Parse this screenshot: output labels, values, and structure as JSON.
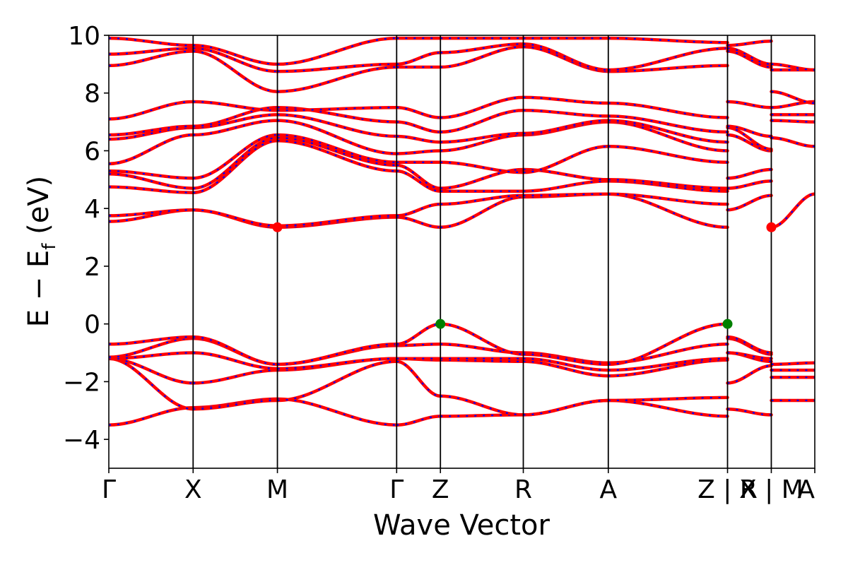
{
  "chart_data": {
    "type": "line",
    "title": "",
    "xlabel": "Wave Vector",
    "ylabel": "E − E",
    "ylabel_sub": "f",
    "ylabel_unit": " (eV)",
    "ylim": [
      -5,
      10
    ],
    "yticks": [
      10,
      8,
      6,
      4,
      2,
      0,
      -2,
      -4
    ],
    "ytick_labels": [
      "10",
      "8",
      "6",
      "4",
      "2",
      "0",
      "−2",
      "−4"
    ],
    "xlim": [
      0,
      1
    ],
    "kpoints": [
      {
        "label": "Γ",
        "x": 0.0
      },
      {
        "label": "X",
        "x": 0.1194
      },
      {
        "label": "M",
        "x": 0.2388
      },
      {
        "label": "Γ",
        "x": 0.4077
      },
      {
        "label": "Z",
        "x": 0.4697
      },
      {
        "label": "R",
        "x": 0.5871
      },
      {
        "label": "A",
        "x": 0.7075
      },
      {
        "label": "Z | R",
        "x": 0.8764
      },
      {
        "label": "X | M",
        "x": 0.9384
      },
      {
        "label": "A",
        "x": 1.0
      }
    ],
    "series_style": {
      "line_color": "#ff0000",
      "dash_color": "#0000ff"
    },
    "grid": false,
    "special_points": [
      {
        "type": "CBM",
        "x": 0.2388,
        "y": 3.35,
        "color": "#ff0000"
      },
      {
        "type": "CBM",
        "x": 0.9384,
        "y": 3.35,
        "color": "#ff0000"
      },
      {
        "type": "VBM",
        "x": 0.4697,
        "y": 0.0,
        "color": "#008000"
      },
      {
        "type": "VBM",
        "x": 0.8764,
        "y": 0.0,
        "color": "#008000"
      }
    ],
    "segments": [
      {
        "from": "Γ",
        "to": "X",
        "x0": 0.0,
        "x1": 0.1194,
        "bands": [
          [
            -3.5,
            -2.9
          ],
          [
            -1.2,
            -2.95
          ],
          [
            -1.2,
            -2.05
          ],
          [
            -1.2,
            -1.0
          ],
          [
            -1.15,
            -0.5
          ],
          [
            -0.7,
            -0.45
          ],
          [
            3.55,
            3.95
          ],
          [
            3.75,
            3.95
          ],
          [
            4.75,
            4.55
          ],
          [
            5.2,
            4.7
          ],
          [
            5.3,
            5.05
          ],
          [
            5.55,
            6.55
          ],
          [
            6.4,
            6.8
          ],
          [
            6.55,
            6.85
          ],
          [
            7.1,
            7.7
          ],
          [
            8.95,
            9.45
          ],
          [
            9.35,
            9.55
          ],
          [
            9.9,
            9.65
          ]
        ]
      },
      {
        "from": "X",
        "to": "M",
        "x0": 0.1194,
        "x1": 0.2388,
        "bands": [
          [
            -2.9,
            -2.6
          ],
          [
            -2.95,
            -2.65
          ],
          [
            -2.05,
            -1.6
          ],
          [
            -1.0,
            -1.55
          ],
          [
            -0.5,
            -1.4
          ],
          [
            -0.45,
            -1.4
          ],
          [
            3.95,
            3.35
          ],
          [
            3.95,
            3.4
          ],
          [
            4.55,
            6.35
          ],
          [
            4.7,
            6.45
          ],
          [
            5.05,
            6.55
          ],
          [
            6.55,
            7.05
          ],
          [
            6.8,
            7.25
          ],
          [
            6.85,
            7.5
          ],
          [
            7.7,
            7.4
          ],
          [
            9.45,
            8.05
          ],
          [
            9.55,
            8.75
          ],
          [
            9.65,
            9.0
          ]
        ]
      },
      {
        "from": "M",
        "to": "Γ",
        "x0": 0.2388,
        "x1": 0.4077,
        "bands": [
          [
            -2.6,
            -3.5
          ],
          [
            -2.65,
            -1.3
          ],
          [
            -1.6,
            -1.2
          ],
          [
            -1.55,
            -1.2
          ],
          [
            -1.4,
            -0.75
          ],
          [
            -1.4,
            -0.7
          ],
          [
            3.35,
            3.7
          ],
          [
            3.4,
            3.75
          ],
          [
            6.35,
            5.3
          ],
          [
            6.45,
            5.5
          ],
          [
            6.55,
            5.6
          ],
          [
            7.05,
            5.9
          ],
          [
            7.25,
            6.5
          ],
          [
            7.5,
            7.0
          ],
          [
            7.4,
            7.5
          ],
          [
            8.05,
            8.9
          ],
          [
            8.75,
            9.0
          ],
          [
            9.0,
            9.9
          ]
        ]
      },
      {
        "from": "Γ",
        "to": "Z",
        "x0": 0.4077,
        "x1": 0.4697,
        "bands": [
          [
            -3.5,
            -3.2
          ],
          [
            -1.3,
            -2.5
          ],
          [
            -1.2,
            -1.25
          ],
          [
            -1.2,
            -1.2
          ],
          [
            -0.75,
            -0.7
          ],
          [
            -0.7,
            0.0
          ],
          [
            3.7,
            3.35
          ],
          [
            3.75,
            4.15
          ],
          [
            5.3,
            4.6
          ],
          [
            5.5,
            4.7
          ],
          [
            5.6,
            5.6
          ],
          [
            5.9,
            6.0
          ],
          [
            6.5,
            6.3
          ],
          [
            7.0,
            6.65
          ],
          [
            7.5,
            7.15
          ],
          [
            8.9,
            8.9
          ],
          [
            9.0,
            9.4
          ],
          [
            9.9,
            9.9
          ]
        ]
      },
      {
        "from": "Z",
        "to": "R",
        "x0": 0.4697,
        "x1": 0.5871,
        "bands": [
          [
            -3.2,
            -3.15
          ],
          [
            -2.5,
            -3.15
          ],
          [
            -1.25,
            -1.3
          ],
          [
            -1.2,
            -1.2
          ],
          [
            -0.7,
            -1.0
          ],
          [
            0.0,
            -1.05
          ],
          [
            3.35,
            4.4
          ],
          [
            4.15,
            4.45
          ],
          [
            4.6,
            4.6
          ],
          [
            4.7,
            5.35
          ],
          [
            5.6,
            5.25
          ],
          [
            6.0,
            6.55
          ],
          [
            6.3,
            6.6
          ],
          [
            6.65,
            7.4
          ],
          [
            7.15,
            7.85
          ],
          [
            8.9,
            9.6
          ],
          [
            9.4,
            9.7
          ],
          [
            9.9,
            9.9
          ]
        ]
      },
      {
        "from": "R",
        "to": "A",
        "x0": 0.5871,
        "x1": 0.7075,
        "bands": [
          [
            -3.15,
            -2.65
          ],
          [
            -3.15,
            -2.65
          ],
          [
            -1.3,
            -1.8
          ],
          [
            -1.2,
            -1.6
          ],
          [
            -1.0,
            -1.35
          ],
          [
            -1.05,
            -1.4
          ],
          [
            4.4,
            4.5
          ],
          [
            4.45,
            4.5
          ],
          [
            4.6,
            4.95
          ],
          [
            5.35,
            5.0
          ],
          [
            5.25,
            6.15
          ],
          [
            6.55,
            7.0
          ],
          [
            6.6,
            7.05
          ],
          [
            7.4,
            7.2
          ],
          [
            7.85,
            7.65
          ],
          [
            9.6,
            8.75
          ],
          [
            9.7,
            8.8
          ],
          [
            9.9,
            9.9
          ]
        ]
      },
      {
        "from": "A",
        "to": "Z | R",
        "x0": 0.7075,
        "x1": 0.8764,
        "bands": [
          [
            -2.65,
            -3.2
          ],
          [
            -2.65,
            -2.55
          ],
          [
            -1.8,
            -1.25
          ],
          [
            -1.6,
            -1.2
          ],
          [
            -1.35,
            -0.7
          ],
          [
            -1.4,
            0.0
          ],
          [
            4.5,
            3.35
          ],
          [
            4.5,
            4.15
          ],
          [
            4.95,
            4.6
          ],
          [
            5.0,
            4.7
          ],
          [
            6.15,
            5.6
          ],
          [
            7.0,
            6.0
          ],
          [
            7.05,
            6.3
          ],
          [
            7.2,
            6.65
          ],
          [
            7.65,
            7.15
          ],
          [
            8.75,
            8.95
          ],
          [
            8.8,
            9.55
          ],
          [
            9.9,
            9.75
          ]
        ]
      },
      {
        "from": "Z | R",
        "to": "X | M",
        "x0": 0.8764,
        "x1": 0.9384,
        "bands": [
          [
            -2.95,
            -3.15
          ],
          [
            -2.05,
            -1.45
          ],
          [
            -1.0,
            -1.3
          ],
          [
            -1.0,
            -1.2
          ],
          [
            -0.5,
            -1.05
          ],
          [
            -0.45,
            -1.0
          ],
          [
            3.95,
            4.45
          ],
          [
            4.7,
            4.95
          ],
          [
            5.05,
            5.35
          ],
          [
            6.55,
            6.0
          ],
          [
            6.8,
            6.05
          ],
          [
            6.85,
            6.5
          ],
          [
            7.7,
            7.5
          ],
          [
            9.45,
            8.9
          ],
          [
            9.55,
            9.0
          ],
          [
            9.65,
            9.8
          ]
        ]
      },
      {
        "from": "X | M",
        "to": "A",
        "x0": 0.9384,
        "x1": 1.0,
        "bands": [
          [
            -2.65,
            -2.65
          ],
          [
            -1.85,
            -1.85
          ],
          [
            -1.6,
            -1.6
          ],
          [
            -1.4,
            -1.35
          ],
          [
            3.35,
            4.5
          ],
          [
            6.45,
            6.15
          ],
          [
            7.05,
            7.0
          ],
          [
            7.25,
            7.25
          ],
          [
            7.5,
            7.7
          ],
          [
            8.05,
            7.65
          ],
          [
            8.8,
            8.8
          ],
          [
            9.0,
            8.8
          ]
        ]
      }
    ]
  }
}
